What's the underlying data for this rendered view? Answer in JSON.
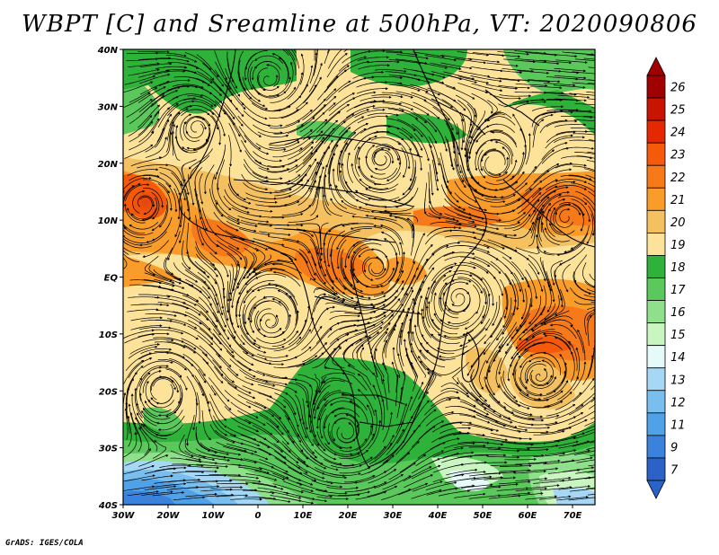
{
  "title": "WBPT [C] and Sreamline at 500hPa, VT: 2020090806",
  "credit": "GrADS: IGES/COLA",
  "map": {
    "lat_labels": [
      "40N",
      "30N",
      "20N",
      "10N",
      "EQ",
      "10S",
      "20S",
      "30S",
      "40S"
    ],
    "lon_labels": [
      "30W",
      "20W",
      "10W",
      "0",
      "10E",
      "20E",
      "30E",
      "40E",
      "50E",
      "60E",
      "70E"
    ],
    "lat_range": [
      -40,
      40
    ],
    "lon_range": [
      -30,
      75
    ],
    "variable": "WBPT [C]",
    "level": "500hPa",
    "valid_time": "2020090806"
  },
  "colorbar": {
    "labels": [
      "26",
      "25",
      "24",
      "23",
      "22",
      "21",
      "20",
      "19",
      "18",
      "17",
      "16",
      "15",
      "14",
      "13",
      "12",
      "11",
      "9",
      "7"
    ],
    "colors": [
      "#a00000",
      "#c81400",
      "#e62800",
      "#f55a0a",
      "#f77a1a",
      "#f99c2a",
      "#f5c060",
      "#fde29a",
      "#2fb23a",
      "#5ac85a",
      "#8fe08a",
      "#c8f5c0",
      "#e6fafa",
      "#a6d8f5",
      "#78bff0",
      "#4fa1e8",
      "#3b82dc",
      "#2a62c8"
    ]
  }
}
